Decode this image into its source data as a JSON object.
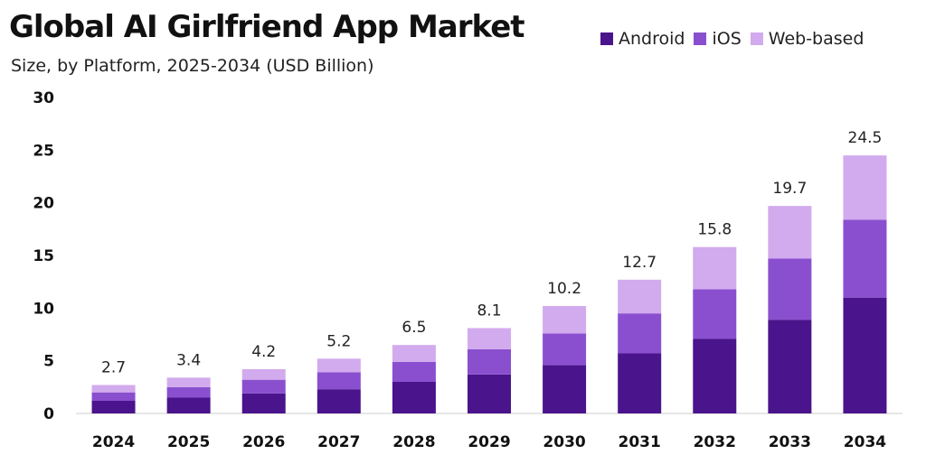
{
  "chart_data": {
    "type": "bar",
    "stacked": true,
    "title": "Global AI Girlfriend App Market",
    "subtitle": "Size, by Platform, 2025-2034 (USD Billion)",
    "xlabel": "",
    "ylabel": "",
    "ylim": [
      0,
      30
    ],
    "yticks": [
      "0",
      "5",
      "10",
      "15",
      "20",
      "25",
      "30"
    ],
    "grid": false,
    "legend_position": "top-right",
    "categories": [
      "2024",
      "2025",
      "2026",
      "2027",
      "2028",
      "2029",
      "2030",
      "2031",
      "2032",
      "2033",
      "2034"
    ],
    "totals": [
      "2.7",
      "3.4",
      "4.2",
      "5.2",
      "6.5",
      "8.1",
      "10.2",
      "12.7",
      "15.8",
      "19.7",
      "24.5"
    ],
    "series": [
      {
        "name": "Android",
        "color": "#4a148c",
        "values": [
          1.2,
          1.5,
          1.9,
          2.3,
          3.0,
          3.7,
          4.6,
          5.7,
          7.1,
          8.9,
          11.0
        ]
      },
      {
        "name": "iOS",
        "color": "#8a4fcf",
        "values": [
          0.8,
          1.0,
          1.3,
          1.6,
          1.9,
          2.4,
          3.0,
          3.8,
          4.7,
          5.8,
          7.4
        ]
      },
      {
        "name": "Web-based",
        "color": "#d2aaee",
        "values": [
          0.7,
          0.9,
          1.0,
          1.3,
          1.6,
          2.0,
          2.6,
          3.2,
          4.0,
          5.0,
          6.1
        ]
      }
    ]
  }
}
